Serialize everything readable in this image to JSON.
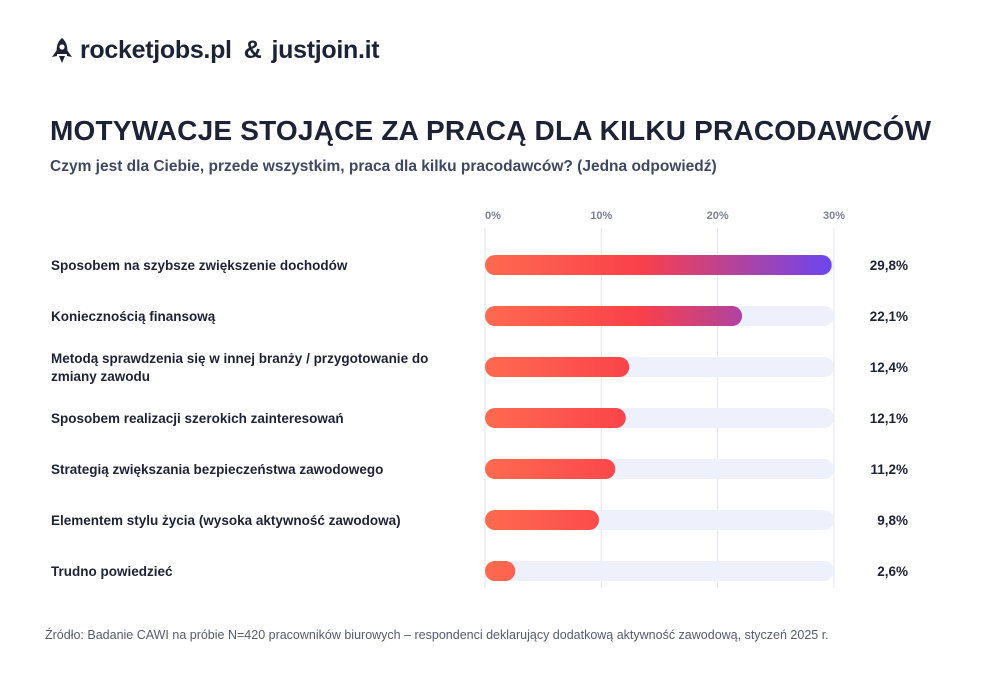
{
  "header": {
    "brand_left": "rocketjobs.pl",
    "ampersand": "&",
    "brand_right": "justjoin.it"
  },
  "title": "MOTYWACJE STOJĄCE ZA PRACĄ DLA KILKU PRACODAWCÓW",
  "subtitle": "Czym jest dla Ciebie, przede wszystkim, praca dla kilku pracodawców? (Jedna odpowiedź)",
  "source": "Źródło: Badanie CAWI na próbie N=420 pracowników biurowych – respondenci deklarujący dodatkową aktywność zawodową, styczeń 2025 r.",
  "colors": {
    "gradient_start": "#ff6a50",
    "gradient_mid": "#f9404a",
    "gradient_end": "#6a46f2",
    "track": "#eef0fb",
    "gridline": "#e4e6ee"
  },
  "chart_data": {
    "type": "bar",
    "orientation": "horizontal",
    "xlim": [
      0,
      30
    ],
    "ticks": [
      {
        "value": 0,
        "label": "0%"
      },
      {
        "value": 10,
        "label": "10%"
      },
      {
        "value": 20,
        "label": "20%"
      },
      {
        "value": 30,
        "label": "30%"
      }
    ],
    "categories": [
      {
        "label": [
          "Sposobem na szybsze zwiększenie dochodów"
        ],
        "value": 29.8,
        "value_label": "29,8%"
      },
      {
        "label": [
          "Koniecznością finansową"
        ],
        "value": 22.1,
        "value_label": "22,1%"
      },
      {
        "label": [
          "Metodą sprawdzenia się w innej branży / przygotowanie do",
          "zmiany zawodu"
        ],
        "value": 12.4,
        "value_label": "12,4%"
      },
      {
        "label": [
          "Sposobem realizacji szerokich zainteresowań"
        ],
        "value": 12.1,
        "value_label": "12,1%"
      },
      {
        "label": [
          "Strategią zwiększania bezpieczeństwa zawodowego"
        ],
        "value": 11.2,
        "value_label": "11,2%"
      },
      {
        "label": [
          "Elementem stylu życia (wysoka aktywność zawodowa)"
        ],
        "value": 9.8,
        "value_label": "9,8%"
      },
      {
        "label": [
          "Trudno powiedzieć"
        ],
        "value": 2.6,
        "value_label": "2,6%"
      }
    ]
  }
}
